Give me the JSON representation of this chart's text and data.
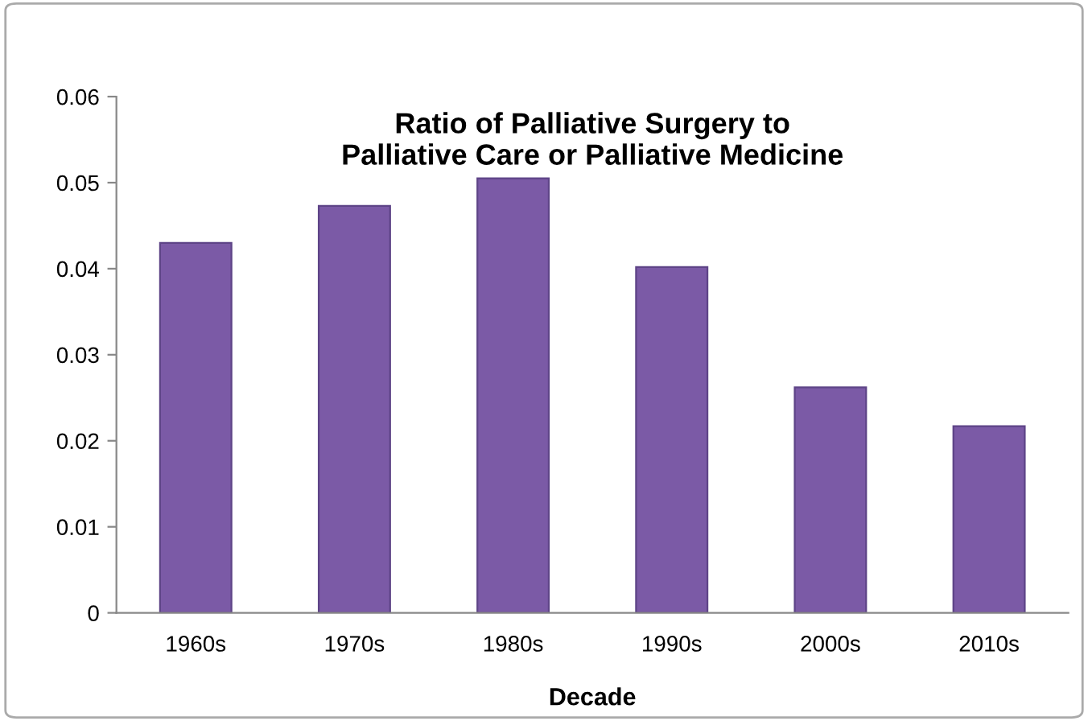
{
  "chart_data": {
    "type": "bar",
    "title": "Ratio of Palliative Surgery to\nPalliative Care or Palliative Medicine",
    "xlabel": "Decade",
    "categories": [
      "1960s",
      "1970s",
      "1980s",
      "1990s",
      "2000s",
      "2010s"
    ],
    "values": [
      0.043,
      0.0473,
      0.0505,
      0.0402,
      0.0262,
      0.0217
    ],
    "color": "#7b5aa6",
    "ylim": [
      0,
      0.06
    ],
    "yticks": [
      {
        "value": 0,
        "label": "0"
      },
      0.01,
      0.02,
      0.03,
      0.04,
      0.05,
      0.06
    ],
    "grid": false,
    "legend": false
  }
}
